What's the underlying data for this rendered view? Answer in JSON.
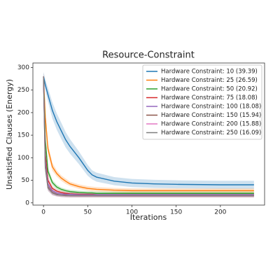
{
  "chart_data": {
    "type": "line",
    "title": "Resource-Constraint",
    "xlabel": "Iterations",
    "ylabel": "Unsatisfied Clauses (Energy)",
    "x": [
      0,
      2,
      5,
      10,
      15,
      20,
      25,
      30,
      40,
      50,
      55,
      60,
      80,
      100,
      125,
      150,
      200,
      238
    ],
    "xlim": [
      -12,
      250
    ],
    "xticks": [
      0,
      50,
      100,
      150,
      200
    ],
    "ylim": [
      -5,
      310
    ],
    "yticks": [
      0,
      50,
      100,
      150,
      200,
      250,
      300
    ],
    "legend": "upper right",
    "series": [
      {
        "name": "Hardware Constraint: 10 (39.39)",
        "color": "#1f77b4",
        "values": [
          280,
          262,
          240,
          205,
          180,
          160,
          140,
          125,
          100,
          72,
          62,
          57,
          48,
          44,
          42,
          41,
          40,
          40
        ],
        "spread": [
          10,
          12,
          15,
          18,
          18,
          18,
          17,
          16,
          14,
          12,
          10,
          10,
          9,
          9,
          9,
          9,
          9,
          9
        ]
      },
      {
        "name": "Hardware Constraint: 25 (26.59)",
        "color": "#ff7f0e",
        "values": [
          280,
          190,
          120,
          80,
          65,
          55,
          48,
          42,
          36,
          32,
          31,
          30,
          28,
          27,
          27,
          27,
          27,
          27
        ],
        "spread": [
          8,
          14,
          12,
          9,
          7,
          6,
          6,
          5,
          5,
          5,
          5,
          5,
          5,
          5,
          5,
          5,
          5,
          5
        ]
      },
      {
        "name": "Hardware Constraint: 50 (20.92)",
        "color": "#2ca02c",
        "values": [
          280,
          140,
          70,
          45,
          35,
          30,
          27,
          25,
          23,
          22,
          22,
          21,
          21,
          21,
          21,
          21,
          21,
          21
        ],
        "spread": [
          8,
          12,
          9,
          6,
          5,
          4,
          4,
          4,
          4,
          4,
          4,
          4,
          4,
          4,
          4,
          4,
          4,
          4
        ]
      },
      {
        "name": "Hardware Constraint: 75 (18.08)",
        "color": "#d62728",
        "values": [
          280,
          110,
          50,
          32,
          26,
          23,
          21,
          20,
          19,
          19,
          19,
          18,
          18,
          18,
          18,
          18,
          18,
          18
        ],
        "spread": [
          8,
          10,
          8,
          5,
          4,
          4,
          4,
          4,
          4,
          4,
          4,
          4,
          4,
          4,
          4,
          4,
          4,
          4
        ]
      },
      {
        "name": "Hardware Constraint: 100 (18.08)",
        "color": "#9467bd",
        "values": [
          280,
          95,
          42,
          27,
          22,
          20,
          19,
          19,
          18,
          18,
          18,
          18,
          18,
          18,
          18,
          18,
          18,
          18
        ],
        "spread": [
          8,
          10,
          7,
          5,
          4,
          4,
          4,
          4,
          4,
          4,
          4,
          4,
          4,
          4,
          4,
          4,
          4,
          4
        ]
      },
      {
        "name": "Hardware Constraint: 150 (15.94)",
        "color": "#8c564b",
        "values": [
          280,
          85,
          36,
          23,
          19,
          17,
          17,
          16,
          16,
          16,
          16,
          16,
          16,
          16,
          16,
          16,
          16,
          16
        ],
        "spread": [
          8,
          10,
          7,
          5,
          4,
          4,
          4,
          4,
          4,
          4,
          4,
          4,
          4,
          4,
          4,
          4,
          4,
          4
        ]
      },
      {
        "name": "Hardware Constraint: 200 (15.88)",
        "color": "#e377c2",
        "values": [
          280,
          80,
          34,
          22,
          18,
          17,
          16,
          16,
          16,
          16,
          16,
          16,
          16,
          16,
          16,
          16,
          16,
          16
        ],
        "spread": [
          8,
          10,
          7,
          5,
          4,
          4,
          4,
          4,
          4,
          4,
          4,
          4,
          4,
          4,
          4,
          4,
          4,
          4
        ]
      },
      {
        "name": "Hardware Constraint: 250 (16.09)",
        "color": "#7f7f7f",
        "values": [
          280,
          78,
          33,
          22,
          18,
          17,
          16,
          16,
          16,
          16,
          16,
          16,
          16,
          16,
          16,
          16,
          16,
          16
        ],
        "spread": [
          8,
          10,
          7,
          5,
          4,
          4,
          4,
          4,
          4,
          4,
          4,
          4,
          4,
          4,
          4,
          4,
          4,
          4
        ]
      }
    ]
  }
}
